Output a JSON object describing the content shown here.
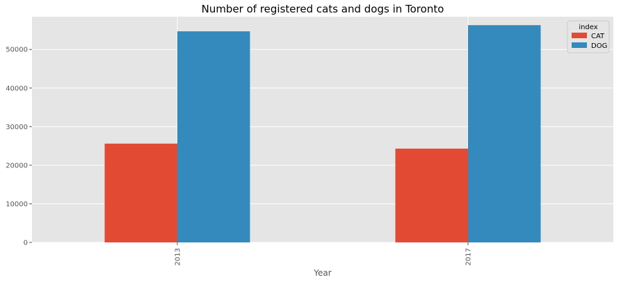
{
  "chart_data": {
    "type": "bar",
    "title": "Number of registered cats and dogs in Toronto",
    "xlabel": "Year",
    "ylabel": "",
    "categories": [
      "2013",
      "2017"
    ],
    "series": [
      {
        "name": "CAT",
        "values": [
          25600,
          24300
        ],
        "color": "#E24A33"
      },
      {
        "name": "DOG",
        "values": [
          54700,
          56300
        ],
        "color": "#348ABD"
      }
    ],
    "ylim": [
      0,
      58500
    ],
    "yticks": [
      0,
      10000,
      20000,
      30000,
      40000,
      50000
    ],
    "ytick_labels": [
      "0",
      "10000",
      "20000",
      "30000",
      "40000",
      "50000"
    ],
    "legend": {
      "title": "index",
      "position": "top-right"
    },
    "grid": true,
    "plot_background": "#E5E5E5",
    "grid_color": "#FFFFFF"
  }
}
